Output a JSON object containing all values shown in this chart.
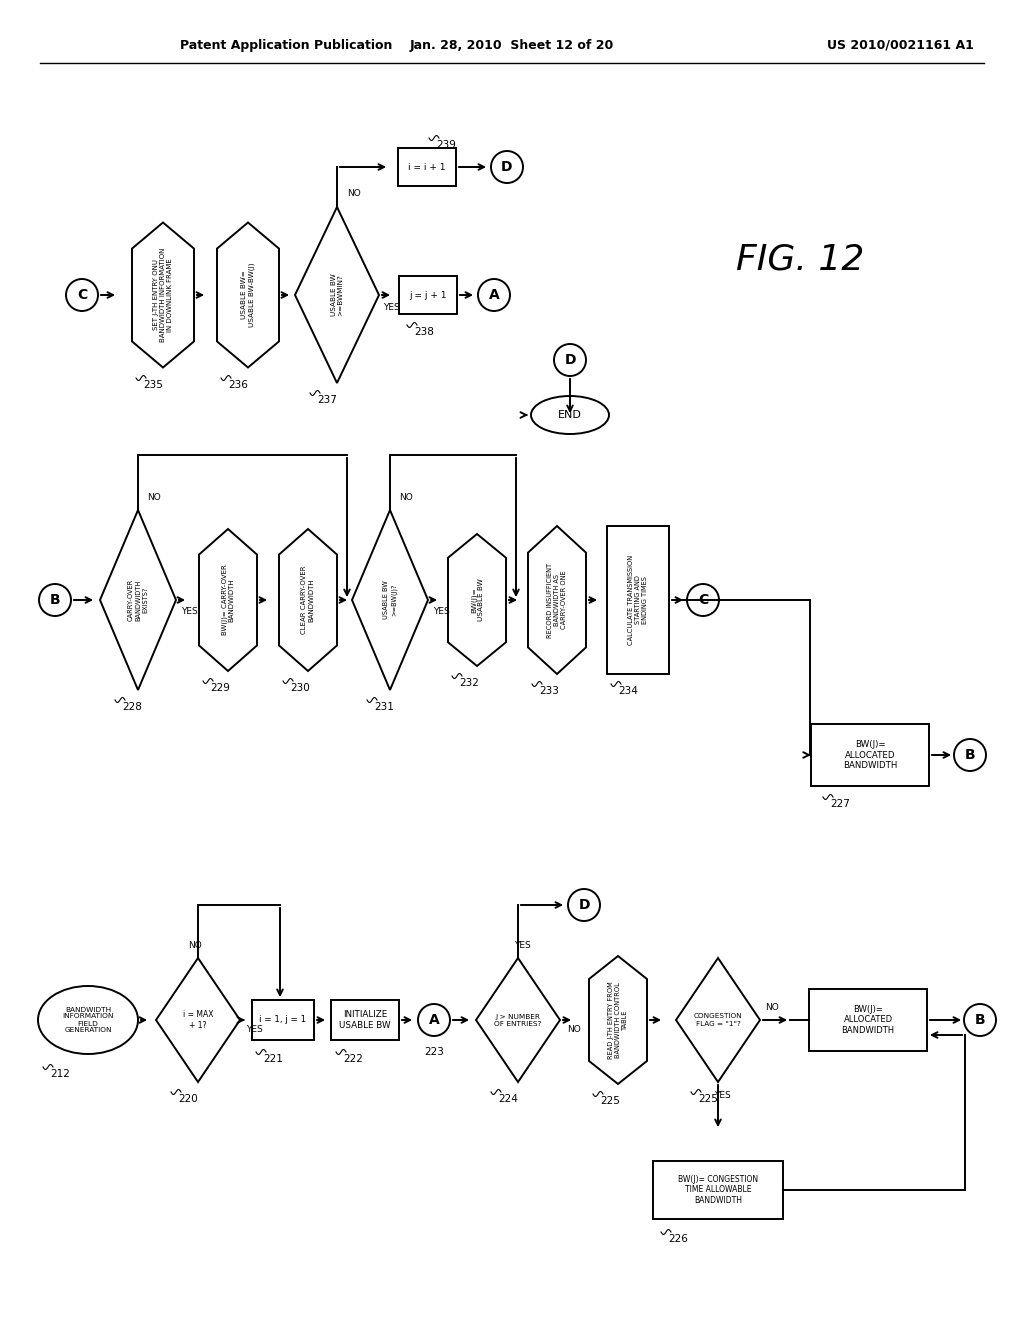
{
  "header_left": "Patent Application Publication",
  "header_mid": "Jan. 28, 2010  Sheet 12 of 20",
  "header_right": "US 2010/0021161 A1",
  "fig_label": "FIG. 12",
  "bg_color": "#ffffff"
}
